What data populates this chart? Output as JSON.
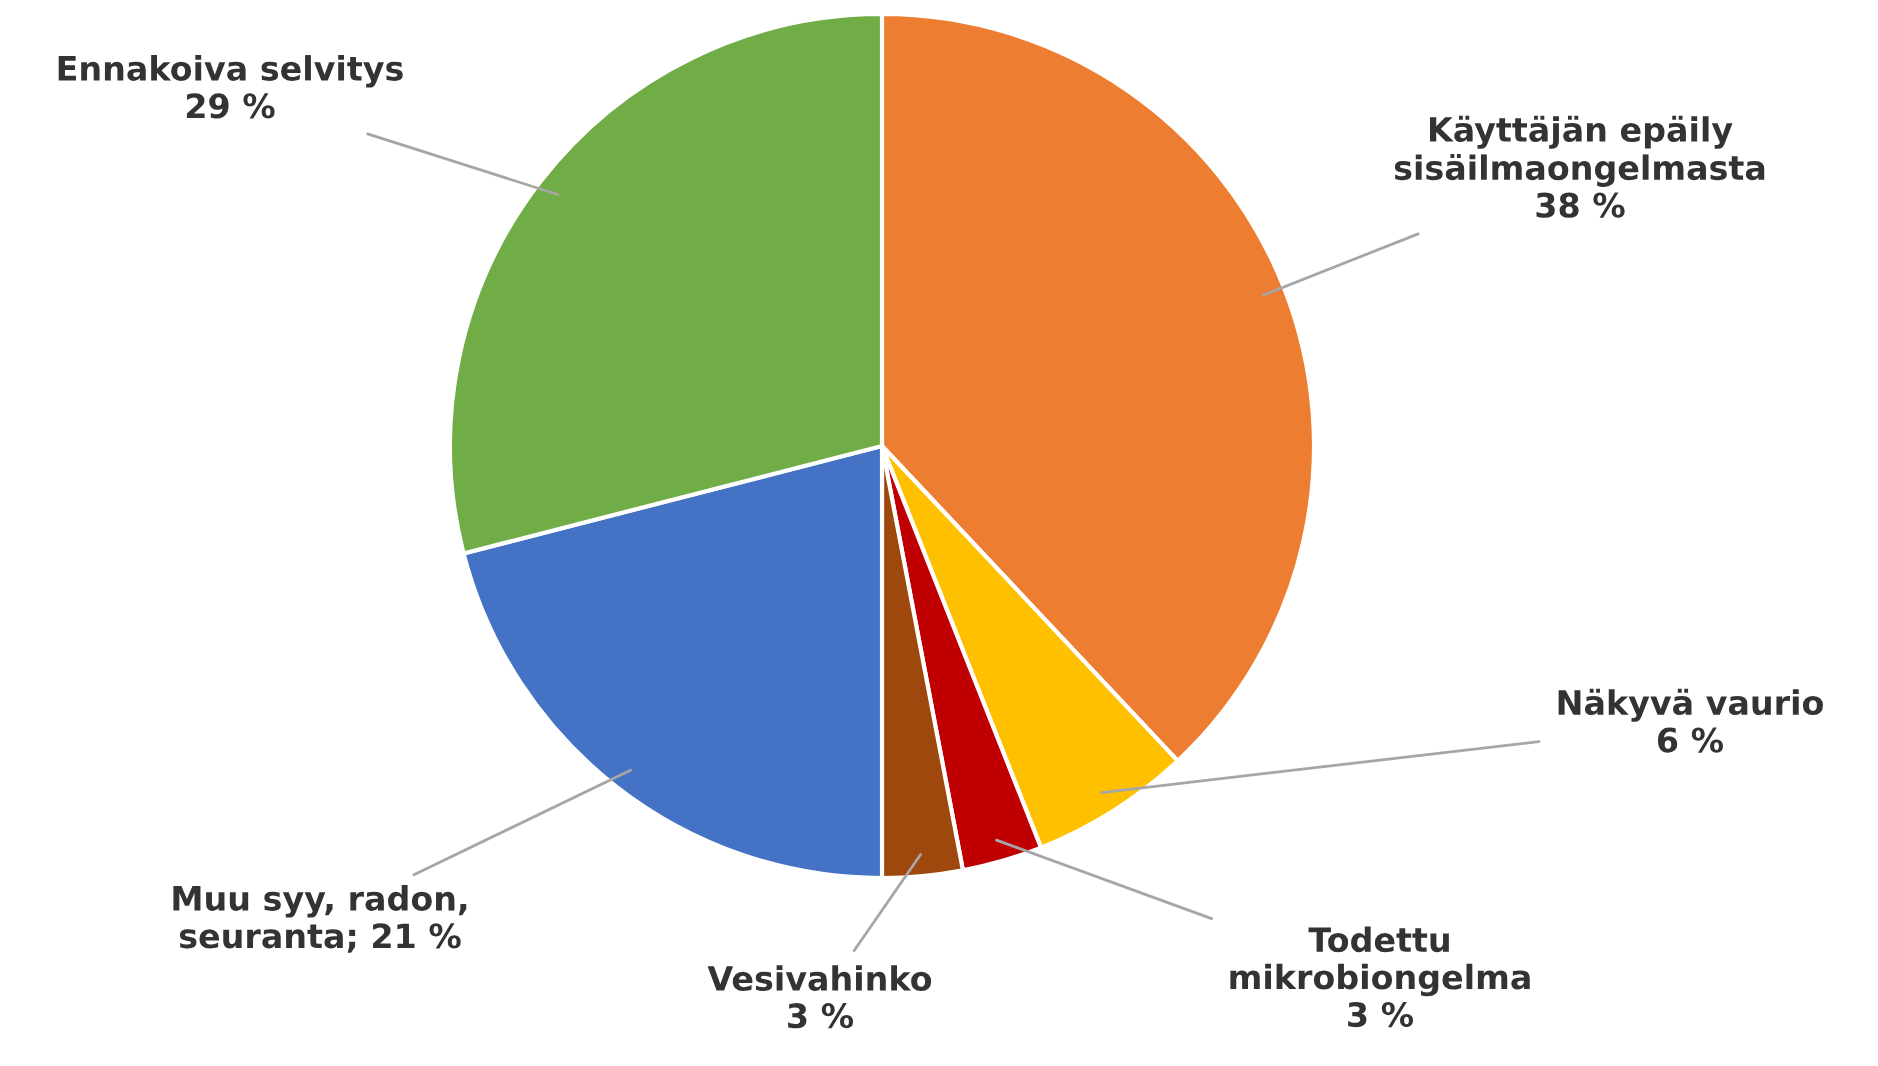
{
  "chart_data": {
    "type": "pie",
    "categories": [
      "Käyttäjän epäily\nsisäilmaongelmasta",
      "Näkyvä vaurio",
      "Todettu\nmikrobiongelma",
      "Vesivahinko",
      "Muu syy, radon,\nseuranta; 21 %",
      "Ennakoiva selvitys"
    ],
    "values": [
      38,
      6,
      3,
      3,
      21,
      29
    ],
    "value_labels": [
      "38 %",
      "6 %",
      "3 %",
      "3 %",
      null,
      "29 %"
    ],
    "colors": [
      "#ed7d31",
      "#ffc000",
      "#c00000",
      "#9e480e",
      "#4472c4",
      "#70ad47"
    ]
  }
}
